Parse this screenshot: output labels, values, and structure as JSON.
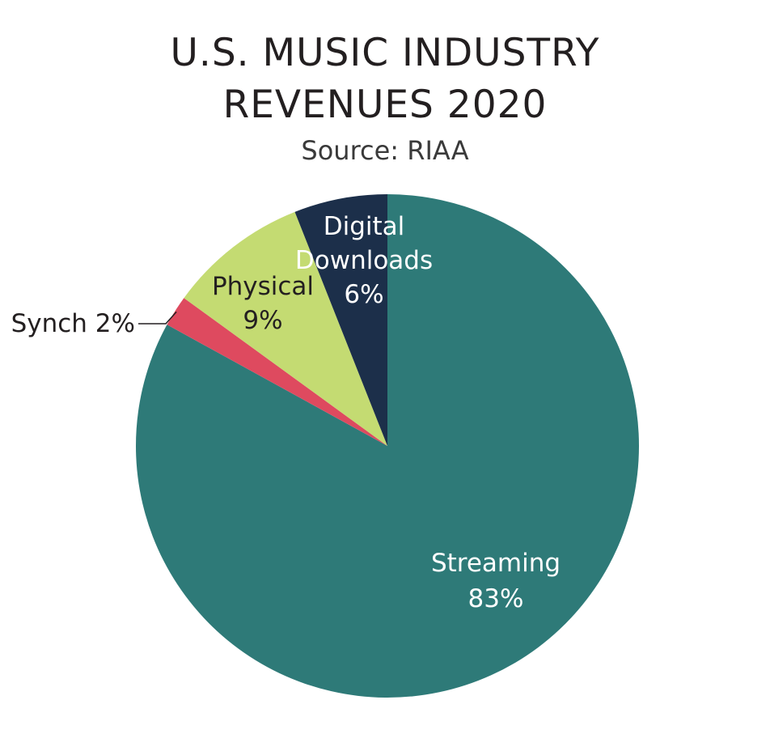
{
  "header": {
    "title_line1": "U.S. MUSIC INDUSTRY",
    "title_line2": "REVENUES 2020",
    "subtitle": "Source: RIAA"
  },
  "chart_data": {
    "type": "pie",
    "title": "U.S. MUSIC INDUSTRY REVENUES 2020",
    "subtitle": "Source: RIAA",
    "start_angle_deg": 0,
    "direction": "clockwise",
    "slices": [
      {
        "name": "Streaming",
        "value": 83,
        "label_lines": [
          "Streaming",
          "83%"
        ],
        "color": "#2e7a78",
        "label_color": "#ffffff"
      },
      {
        "name": "Synch",
        "value": 2,
        "label_lines": [
          "Synch 2%"
        ],
        "color": "#de4a5f",
        "label_color": "#231f20",
        "external_label": true
      },
      {
        "name": "Physical",
        "value": 9,
        "label_lines": [
          "Physical",
          "9%"
        ],
        "color": "#c4db72",
        "label_color": "#231f20"
      },
      {
        "name": "Digital Downloads",
        "value": 6,
        "label_lines": [
          "Digital",
          "Downloads",
          "6%"
        ],
        "color": "#1c2f4a",
        "label_color": "#ffffff"
      }
    ]
  }
}
